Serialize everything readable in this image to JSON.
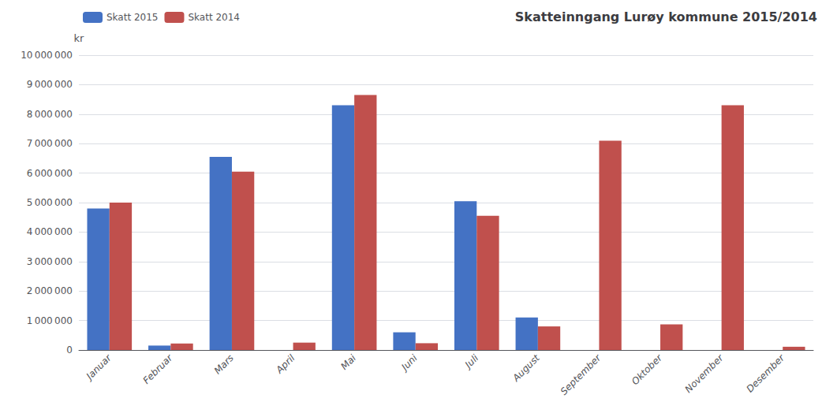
{
  "chart_data": {
    "type": "bar",
    "title": "Skatteinngang Lurøy kommune 2015/2014",
    "ylabel": "kr",
    "categories": [
      "Januar",
      "Februar",
      "Mars",
      "April",
      "Mai",
      "Juni",
      "Juli",
      "August",
      "September",
      "Oktober",
      "November",
      "Desember"
    ],
    "series": [
      {
        "name": "Skatt 2015",
        "color": "#4472C4",
        "values": [
          4800000,
          150000,
          6550000,
          0,
          8300000,
          600000,
          5050000,
          1100000,
          0,
          0,
          0,
          0
        ]
      },
      {
        "name": "Skatt 2014",
        "color": "#C0504D",
        "values": [
          5000000,
          220000,
          6050000,
          250000,
          8650000,
          230000,
          4550000,
          800000,
          7100000,
          870000,
          8300000,
          110000
        ]
      }
    ],
    "ylim": [
      0,
      10000000
    ],
    "yticks": [
      0,
      {
        "value": 1000000,
        "label": "1 000 000"
      },
      {
        "value": 2000000,
        "label": "2 000 000"
      },
      {
        "value": 3000000,
        "label": "3 000 000"
      },
      {
        "value": 4000000,
        "label": "4 000 000"
      },
      {
        "value": 5000000,
        "label": "5 000 000"
      },
      {
        "value": 6000000,
        "label": "6 000 000"
      },
      {
        "value": 7000000,
        "label": "7 000 000"
      },
      {
        "value": 8000000,
        "label": "8 000 000"
      },
      {
        "value": 9000000,
        "label": "9 000 000"
      },
      {
        "value": 10000000,
        "label": "10 000 000"
      }
    ],
    "grid": true,
    "legend": "upper left"
  }
}
